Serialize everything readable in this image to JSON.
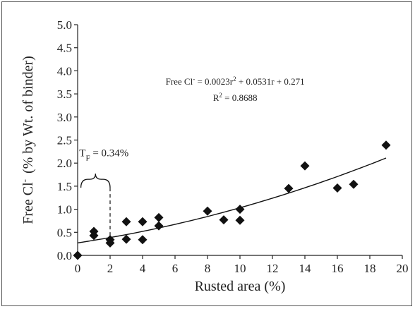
{
  "chart_data": {
    "type": "scatter",
    "xlabel": "Rusted area (%)",
    "ylabel_main": "Free Cl",
    "ylabel_sup": "-",
    "ylabel_rest": "(% by Wt. of binder)",
    "xlim": [
      0,
      20
    ],
    "ylim": [
      0,
      5
    ],
    "x_ticks": [
      "0",
      "2",
      "4",
      "6",
      "8",
      "10",
      "12",
      "14",
      "16",
      "18",
      "20"
    ],
    "y_ticks": [
      "0.0",
      "0.5",
      "1.0",
      "1.5",
      "2.0",
      "2.5",
      "3.0",
      "3.5",
      "4.0",
      "4.5",
      "5.0"
    ],
    "grid": false,
    "marker": "diamond",
    "points": [
      {
        "x": 0,
        "y": 0.0
      },
      {
        "x": 1,
        "y": 0.52
      },
      {
        "x": 1,
        "y": 0.43
      },
      {
        "x": 2,
        "y": 0.34
      },
      {
        "x": 2,
        "y": 0.27
      },
      {
        "x": 3,
        "y": 0.73
      },
      {
        "x": 3,
        "y": 0.35
      },
      {
        "x": 4,
        "y": 0.73
      },
      {
        "x": 4,
        "y": 0.34
      },
      {
        "x": 5,
        "y": 0.82
      },
      {
        "x": 5,
        "y": 0.64
      },
      {
        "x": 8,
        "y": 0.96
      },
      {
        "x": 9,
        "y": 0.77
      },
      {
        "x": 10,
        "y": 1.0
      },
      {
        "x": 10,
        "y": 0.76
      },
      {
        "x": 13,
        "y": 1.45
      },
      {
        "x": 14,
        "y": 1.94
      },
      {
        "x": 16,
        "y": 1.46
      },
      {
        "x": 17,
        "y": 1.54
      },
      {
        "x": 19,
        "y": 2.39
      }
    ],
    "trendline": {
      "type": "polynomial",
      "coefficients": {
        "a": 0.0023,
        "b": 0.0531,
        "c": 0.271
      },
      "x_range": [
        0,
        19
      ]
    },
    "equation": {
      "prefix": "Free Cl",
      "sup": "-",
      "rest": " = 0.0023r",
      "sup2": "2",
      "rest2": " + 0.0531r + 0.271",
      "r2_label": "R",
      "r2_sup": "2",
      "r2_rest": " = 0.8688"
    },
    "threshold_annotation": {
      "label_main": "T",
      "label_sub": "F",
      "label_rest": " = 0.34%",
      "x": 2,
      "y": 0.34
    },
    "colors": {
      "marker": "#111111",
      "trendline": "#111111",
      "axis": "#222222"
    }
  }
}
